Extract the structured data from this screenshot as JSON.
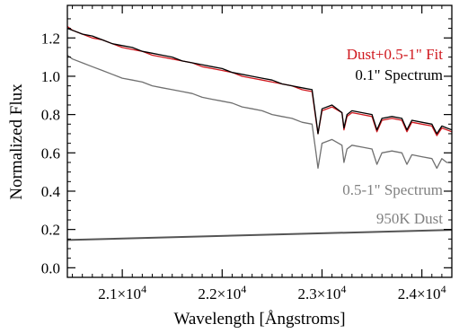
{
  "chart_data": {
    "type": "line",
    "xlabel": "Wavelength [Ångstroms]",
    "ylabel": "Normalized Flux",
    "xlim": [
      20450,
      24300
    ],
    "ylim": [
      -0.05,
      1.37
    ],
    "grid": false,
    "x_ticks": [
      {
        "value": 21000,
        "mantissa": "2.1",
        "exponent": "4"
      },
      {
        "value": 22000,
        "mantissa": "2.2",
        "exponent": "4"
      },
      {
        "value": 23000,
        "mantissa": "2.3",
        "exponent": "4"
      },
      {
        "value": 24000,
        "mantissa": "2.4",
        "exponent": "4"
      }
    ],
    "y_ticks": [
      {
        "value": 0.0,
        "label": "0.0"
      },
      {
        "value": 0.2,
        "label": "0.2"
      },
      {
        "value": 0.4,
        "label": "0.4"
      },
      {
        "value": 0.6,
        "label": "0.6"
      },
      {
        "value": 0.8,
        "label": "0.8"
      },
      {
        "value": 1.0,
        "label": "1.0"
      },
      {
        "value": 1.2,
        "label": "1.2"
      }
    ],
    "times_sign": "×",
    "tick_base": "10",
    "series": [
      {
        "name": "0.5-1\" Spectrum",
        "color": "#707070",
        "x": [
          20450,
          20500,
          20600,
          20700,
          20800,
          20900,
          21000,
          21100,
          21200,
          21300,
          21400,
          21500,
          21600,
          21700,
          21800,
          21900,
          22000,
          22100,
          22200,
          22300,
          22400,
          22500,
          22600,
          22700,
          22800,
          22900,
          22940,
          22960,
          23000,
          23100,
          23200,
          23220,
          23250,
          23300,
          23400,
          23500,
          23550,
          23600,
          23700,
          23800,
          23850,
          23900,
          24000,
          24100,
          24150,
          24200,
          24250,
          24300
        ],
        "y": [
          1.11,
          1.09,
          1.07,
          1.05,
          1.03,
          1.01,
          0.99,
          0.98,
          0.97,
          0.95,
          0.94,
          0.93,
          0.92,
          0.91,
          0.89,
          0.88,
          0.87,
          0.86,
          0.84,
          0.83,
          0.82,
          0.8,
          0.79,
          0.78,
          0.76,
          0.75,
          0.6,
          0.52,
          0.65,
          0.67,
          0.64,
          0.55,
          0.62,
          0.64,
          0.63,
          0.62,
          0.54,
          0.6,
          0.61,
          0.6,
          0.54,
          0.59,
          0.58,
          0.57,
          0.52,
          0.57,
          0.55,
          0.55
        ]
      },
      {
        "name": "Dust+0.5-1\" Fit",
        "color": "#d0181e",
        "x": [
          20450,
          20500,
          20600,
          20700,
          20800,
          20900,
          21000,
          21100,
          21200,
          21300,
          21400,
          21500,
          21600,
          21700,
          21800,
          21900,
          22000,
          22100,
          22200,
          22300,
          22400,
          22500,
          22600,
          22700,
          22800,
          22900,
          22940,
          22960,
          23000,
          23100,
          23200,
          23220,
          23250,
          23300,
          23400,
          23500,
          23550,
          23600,
          23700,
          23800,
          23850,
          23900,
          24000,
          24100,
          24150,
          24200,
          24250,
          24300
        ],
        "y": [
          1.26,
          1.24,
          1.22,
          1.2,
          1.19,
          1.17,
          1.15,
          1.14,
          1.13,
          1.11,
          1.1,
          1.09,
          1.08,
          1.07,
          1.05,
          1.04,
          1.03,
          1.02,
          1.0,
          0.99,
          0.98,
          0.97,
          0.96,
          0.95,
          0.93,
          0.92,
          0.77,
          0.7,
          0.82,
          0.84,
          0.81,
          0.72,
          0.79,
          0.81,
          0.8,
          0.79,
          0.71,
          0.77,
          0.78,
          0.77,
          0.71,
          0.76,
          0.75,
          0.74,
          0.69,
          0.73,
          0.72,
          0.71
        ]
      },
      {
        "name": "0.1\" Spectrum",
        "color": "#000000",
        "x": [
          20450,
          20500,
          20600,
          20700,
          20800,
          20900,
          21000,
          21100,
          21200,
          21300,
          21400,
          21500,
          21600,
          21700,
          21800,
          21900,
          22000,
          22100,
          22200,
          22300,
          22400,
          22500,
          22600,
          22700,
          22800,
          22900,
          22940,
          22960,
          23000,
          23100,
          23200,
          23220,
          23250,
          23300,
          23400,
          23500,
          23550,
          23600,
          23700,
          23800,
          23850,
          23900,
          24000,
          24100,
          24150,
          24200,
          24250,
          24300
        ],
        "y": [
          1.25,
          1.24,
          1.22,
          1.21,
          1.19,
          1.17,
          1.16,
          1.15,
          1.13,
          1.12,
          1.11,
          1.1,
          1.08,
          1.07,
          1.06,
          1.05,
          1.04,
          1.02,
          1.01,
          1.0,
          0.99,
          0.98,
          0.96,
          0.95,
          0.94,
          0.93,
          0.78,
          0.7,
          0.83,
          0.85,
          0.81,
          0.73,
          0.8,
          0.82,
          0.81,
          0.8,
          0.72,
          0.78,
          0.79,
          0.78,
          0.72,
          0.77,
          0.76,
          0.75,
          0.7,
          0.74,
          0.73,
          0.72
        ]
      },
      {
        "name": "950K Dust",
        "color": "#555555",
        "x": [
          20450,
          24300
        ],
        "y": [
          0.145,
          0.198
        ]
      }
    ],
    "legend": [
      {
        "text": "Dust+0.5-1\" Fit",
        "color": "#d0181e"
      },
      {
        "text": "0.1\" Spectrum",
        "color": "#000000"
      },
      {
        "text": "0.5-1\" Spectrum",
        "color": "#808080"
      },
      {
        "text": "950K Dust",
        "color": "#808080"
      }
    ],
    "legend_position": "right"
  }
}
